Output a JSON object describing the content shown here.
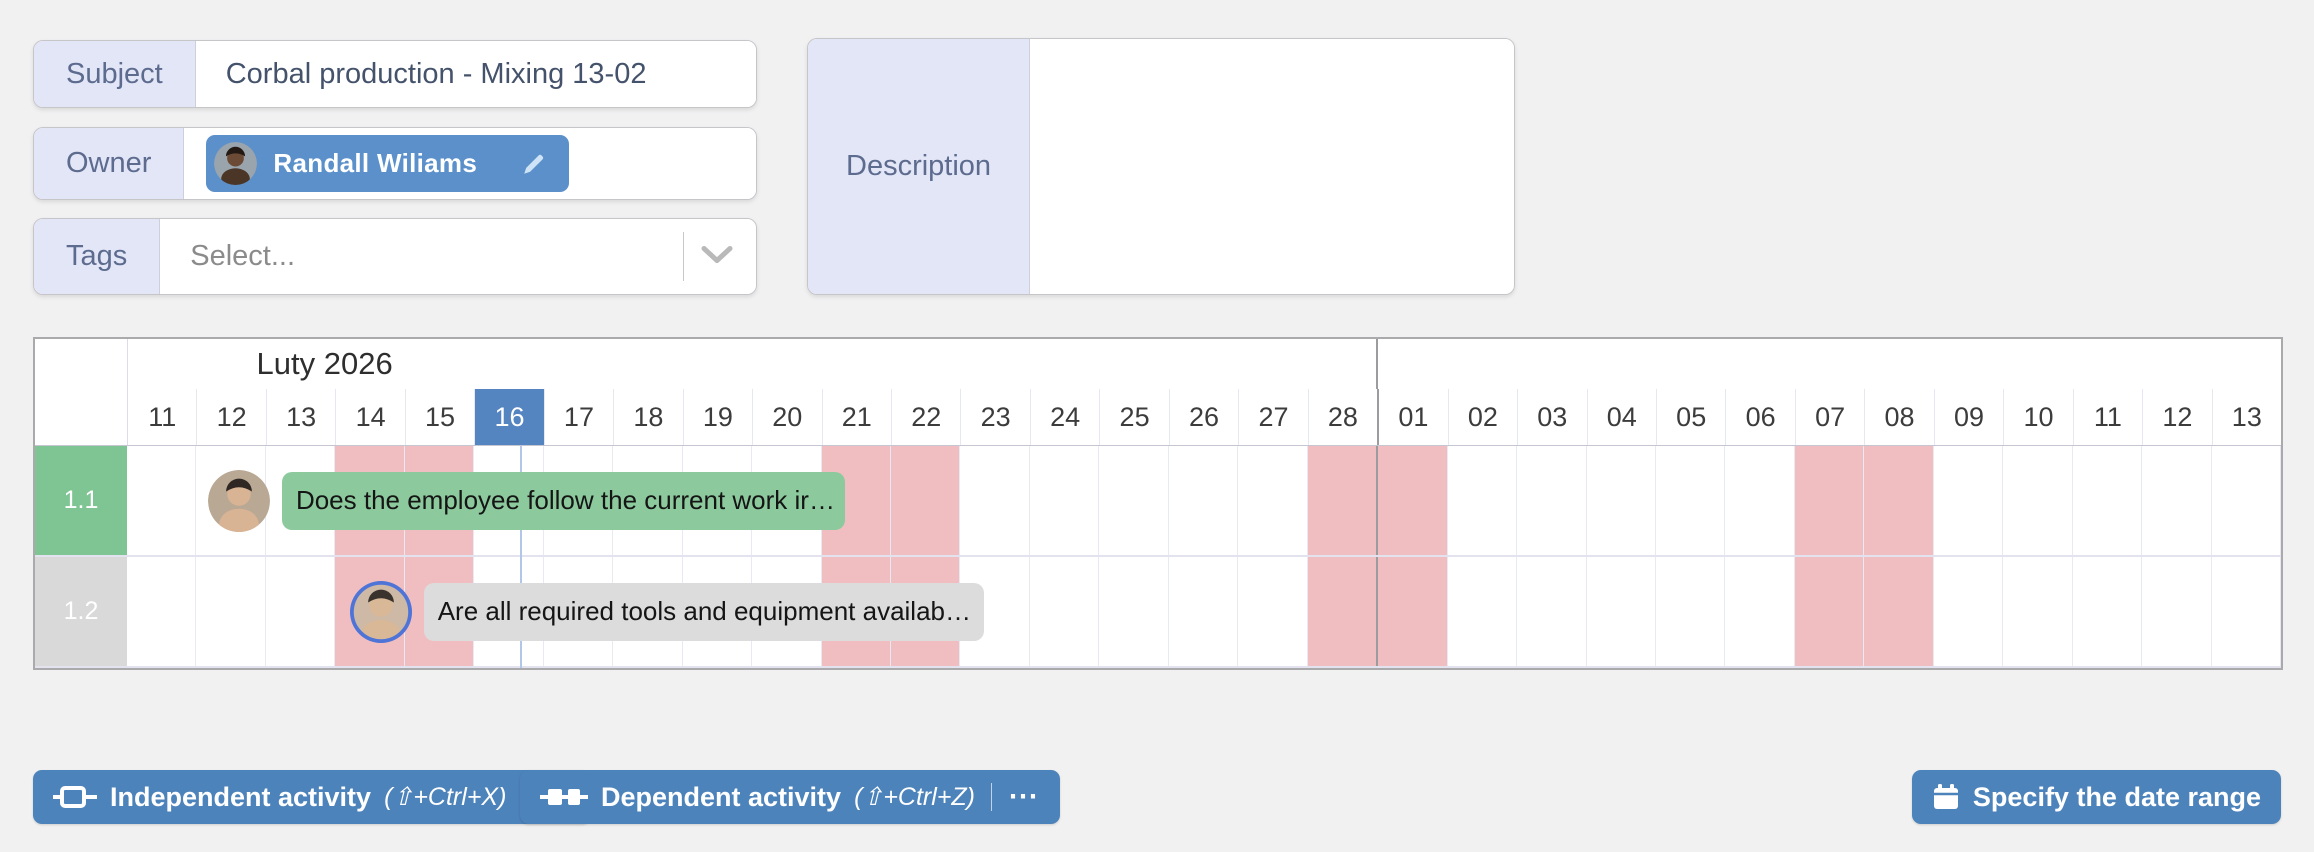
{
  "fields": {
    "subject": {
      "label": "Subject",
      "value": "Corbal production - Mixing 13-02"
    },
    "owner": {
      "label": "Owner",
      "value": "Randall Wiliams"
    },
    "tags": {
      "label": "Tags",
      "placeholder": "Select..."
    },
    "description": {
      "label": "Description",
      "value": ""
    }
  },
  "gantt": {
    "month_label": "Luty 2026",
    "days": [
      "11",
      "12",
      "13",
      "14",
      "15",
      "16",
      "17",
      "18",
      "19",
      "20",
      "21",
      "22",
      "23",
      "24",
      "25",
      "26",
      "27",
      "28",
      "01",
      "02",
      "03",
      "04",
      "05",
      "06",
      "07",
      "08",
      "09",
      "10",
      "11",
      "12",
      "13"
    ],
    "selected_day": "16",
    "selected_day_index": 5,
    "weekend_indices": [
      3,
      4,
      10,
      11,
      17,
      18,
      24,
      25
    ],
    "month_boundary_after_index": 17,
    "current_time_position_days": 5.65,
    "rows": [
      {
        "id": "1.1",
        "task": "Does the employee follow the current work ir…",
        "label_color": "#7ec593",
        "bar_color": "#8cca9d",
        "bar": {
          "start": 2.23,
          "end": 10.33
        },
        "avatar": {
          "bg": "#b9a894",
          "skin": "#d8b394",
          "hair": "#2e2724",
          "ring": "none"
        }
      },
      {
        "id": "1.2",
        "task": "Are all required tools and equipment availab…",
        "label_color": "#d9d9d9",
        "bar_color": "#dcdcdc",
        "bar": {
          "start": 4.27,
          "end": 12.33
        },
        "avatar": {
          "bg": "#cdb9a5",
          "skin": "#d9b897",
          "hair": "#3a322c",
          "ring": "#4f74d8"
        }
      }
    ]
  },
  "toolbar": {
    "independent": {
      "label": "Independent activity",
      "shortcut": "(⇧+Ctrl+X)",
      "more": "⋯"
    },
    "dependent": {
      "label": "Dependent activity",
      "shortcut": "(⇧+Ctrl+Z)",
      "more": "⋯"
    },
    "date_range": {
      "label": "Specify the date range"
    }
  },
  "colors": {
    "accent_blue": "#4d83bb",
    "selected_day_blue": "#5585c1",
    "owner_chip_blue": "#5b90ca",
    "weekend_pink": "#f0bec1",
    "row_green": "#7ec593",
    "bar_green": "#8cca9d",
    "bar_gray": "#dcdcdc",
    "current_line_blue": "#b2c7e8",
    "label_lavender": "#e3e6f7"
  }
}
